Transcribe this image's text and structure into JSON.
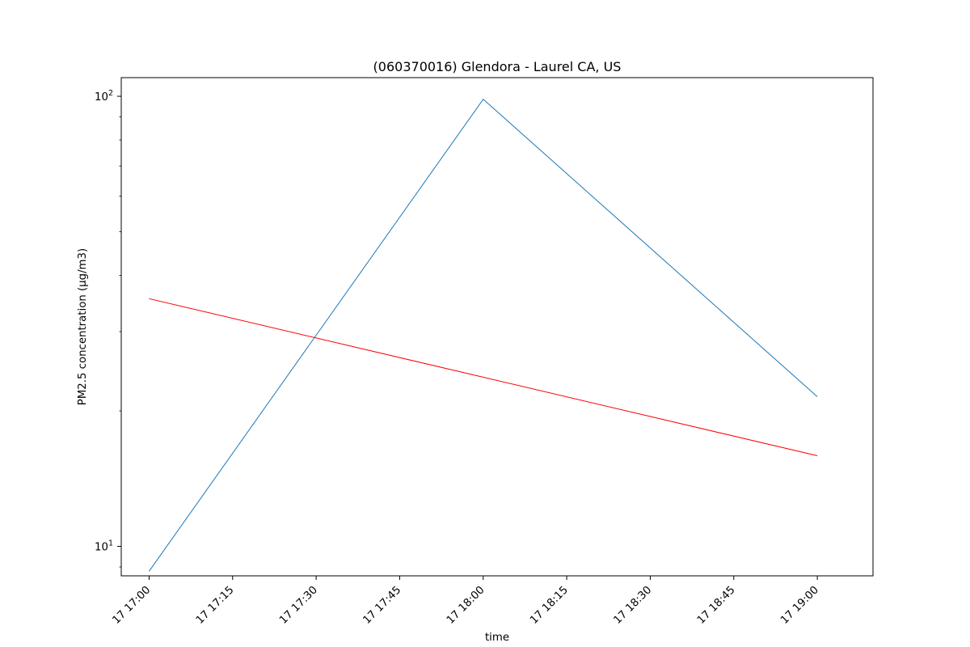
{
  "chart_data": {
    "type": "line",
    "title": "(060370016) Glendora - Laurel CA, US",
    "xlabel": "time",
    "ylabel": "PM2.5 concentration (µg/m3)",
    "y_scale": "log",
    "ylim": [
      8.6,
      110
    ],
    "xlim": [
      "17 16:55",
      "17 19:10"
    ],
    "x_ticks": [
      "17 17:00",
      "17 17:15",
      "17 17:30",
      "17 17:45",
      "17 18:00",
      "17 18:15",
      "17 18:30",
      "17 18:45",
      "17 19:00"
    ],
    "y_ticks": [
      {
        "value": 10,
        "base": "10",
        "exp": "1"
      },
      {
        "value": 100,
        "base": "10",
        "exp": "2"
      }
    ],
    "legend": "none",
    "grid": false,
    "series": [
      {
        "color": "#1f77b4",
        "points": [
          {
            "x": "17 17:00",
            "y": 8.8
          },
          {
            "x": "17 18:00",
            "y": 98.5
          },
          {
            "x": "17 19:00",
            "y": 21.5
          }
        ]
      },
      {
        "color": "#ff0000",
        "points": [
          {
            "x": "17 17:00",
            "y": 35.5
          },
          {
            "x": "17 19:00",
            "y": 15.9
          }
        ]
      }
    ]
  }
}
